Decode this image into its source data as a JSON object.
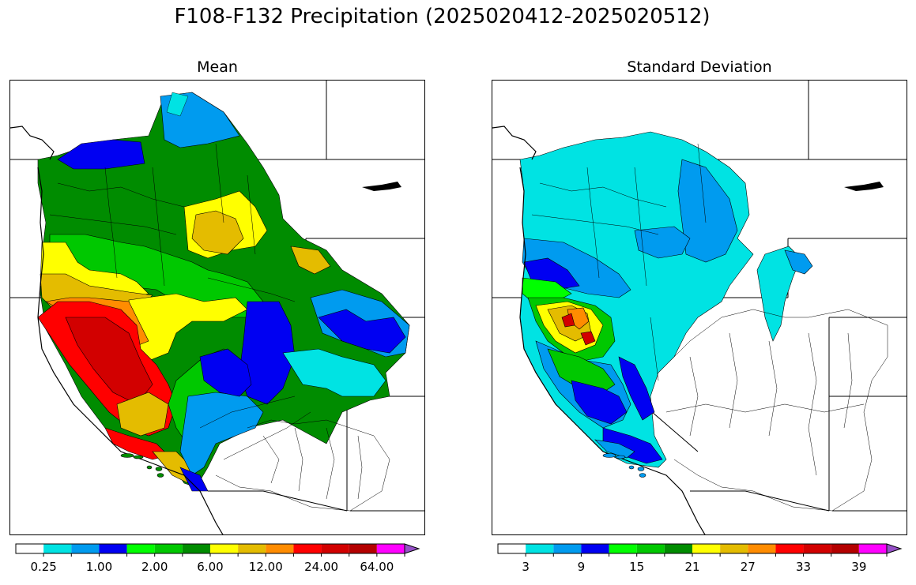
{
  "title": "F108-F132 Precipitation (2025020412-2025020512)",
  "panels": {
    "left": {
      "title": "Mean",
      "colorbar": {
        "colors": [
          "#ffffff",
          "#00e3e3",
          "#009bef",
          "#0000f2",
          "#00ff00",
          "#00c800",
          "#008c00",
          "#ffff00",
          "#e4bc00",
          "#ff8c00",
          "#ff0000",
          "#d20000",
          "#b40000",
          "#ff00ff",
          "#9650c8"
        ],
        "tick_labels": [
          "0.25",
          "1.00",
          "2.00",
          "6.00",
          "12.00",
          "24.00",
          "64.00"
        ],
        "tick_label_boundaries": [
          2,
          4,
          6,
          8,
          10,
          12,
          14
        ]
      }
    },
    "right": {
      "title": "Standard Deviation",
      "colorbar": {
        "colors": [
          "#ffffff",
          "#00e3e3",
          "#009bef",
          "#0000f2",
          "#00ff00",
          "#00c800",
          "#008c00",
          "#ffff00",
          "#e4bc00",
          "#ff8c00",
          "#ff0000",
          "#d20000",
          "#b40000",
          "#ff00ff",
          "#9650c8"
        ],
        "tick_labels": [
          "3",
          "9",
          "15",
          "21",
          "27",
          "33",
          "39"
        ],
        "tick_label_boundaries": [
          2,
          4,
          6,
          8,
          10,
          12,
          14
        ]
      }
    }
  }
}
